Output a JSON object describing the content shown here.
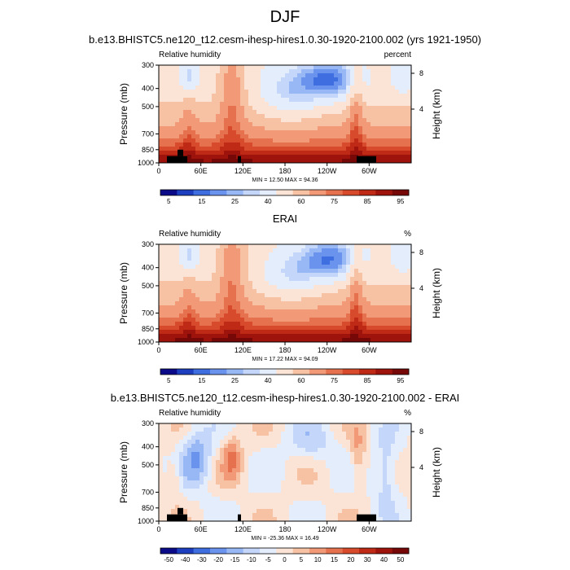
{
  "page_title": "DJF",
  "colors": {
    "rh_palette": [
      "#0b0b8a",
      "#1d3fbf",
      "#3e6ee0",
      "#6a93ee",
      "#98b7f5",
      "#c4d6fa",
      "#e4edfc",
      "#fbe4d5",
      "#f7c2a4",
      "#f29a78",
      "#e6714f",
      "#d84a2c",
      "#bf2a17",
      "#9e140c",
      "#760808"
    ],
    "diff_palette": [
      "#0b0b8a",
      "#1d3fbf",
      "#3e6ee0",
      "#6a93ee",
      "#98b7f5",
      "#c4d6fa",
      "#e4edfc",
      "#fbe4d5",
      "#f7c2a4",
      "#f29a78",
      "#e6714f",
      "#d84a2c",
      "#bf2a17",
      "#9e140c",
      "#760808"
    ],
    "topography": "#000000"
  },
  "chart_data": [
    {
      "type": "heatmap",
      "title": "b.e13.BHISTC5.ne120_t12.cesm-ihesp-hires1.0.30-1920-2100.002 (yrs 1921-1950)",
      "left_label": "Relative humidity",
      "right_label": "percent",
      "ylabel": "Pressure (mb)",
      "y2label": "Height (km)",
      "x_ticks": [
        "0",
        "60E",
        "120E",
        "180",
        "120W",
        "60W"
      ],
      "y_ticks": [
        "300",
        "400",
        "500",
        "700",
        "850",
        "1000"
      ],
      "y2_ticks": [
        "8",
        "4"
      ],
      "stats": "MIN = 12.50  MAX = 94.36",
      "colorbar_labels": [
        "5",
        "15",
        "25",
        "40",
        "60",
        "75",
        "85",
        "95"
      ],
      "palette": "rh"
    },
    {
      "type": "heatmap",
      "title": "ERAI",
      "left_label": "Relative humidity",
      "right_label": "%",
      "ylabel": "Pressure (mb)",
      "y2label": "Height (km)",
      "x_ticks": [
        "0",
        "60E",
        "120E",
        "180",
        "120W",
        "60W"
      ],
      "y_ticks": [
        "300",
        "400",
        "500",
        "700",
        "850",
        "1000"
      ],
      "y2_ticks": [
        "8",
        "4"
      ],
      "stats": "MIN = 17.22  MAX = 94.09",
      "colorbar_labels": [
        "5",
        "15",
        "25",
        "40",
        "60",
        "75",
        "85",
        "95"
      ],
      "palette": "rh"
    },
    {
      "type": "heatmap",
      "title": "b.e13.BHISTC5.ne120_t12.cesm-ihesp-hires1.0.30-1920-2100.002 - ERAI",
      "left_label": "Relative humidity",
      "right_label": "%",
      "ylabel": "Pressure (mb)",
      "y2label": "Height (km)",
      "x_ticks": [
        "0",
        "60E",
        "120E",
        "180",
        "120W",
        "60W"
      ],
      "y_ticks": [
        "300",
        "400",
        "500",
        "700",
        "850",
        "1000"
      ],
      "y2_ticks": [
        "8",
        "4"
      ],
      "stats": "MIN = -25.36  MAX = 16.49",
      "colorbar_labels": [
        "-50",
        "-40",
        "-30",
        "-20",
        "-15",
        "-10",
        "-5",
        "0",
        "5",
        "10",
        "15",
        "20",
        "30",
        "40",
        "50"
      ],
      "palette": "diff"
    }
  ]
}
